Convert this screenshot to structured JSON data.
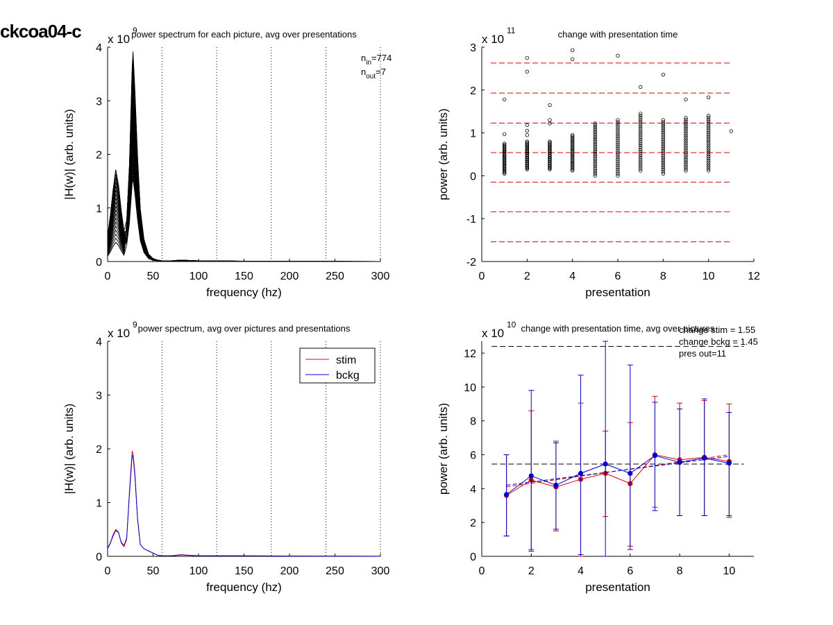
{
  "figure": {
    "suptitle": "ckcoa04-c"
  },
  "chart_data": [
    {
      "id": "tl",
      "type": "line",
      "title": "power spectrum for each picture, avg over presentations",
      "xlabel": "frequency (hz)",
      "ylabel": "|H(w)| (arb. units)",
      "xlim": [
        0,
        300
      ],
      "ylim": [
        0,
        4
      ],
      "xticks": [
        0,
        50,
        100,
        150,
        200,
        250,
        300
      ],
      "yticks": [
        0,
        1,
        2,
        3,
        4
      ],
      "exponent": "x 10",
      "exponent_power": "9",
      "vlines": [
        60,
        120,
        180,
        240,
        300
      ],
      "annotation": {
        "n_in": "774",
        "n_out": "7",
        "n_in_label": "n",
        "n_in_sub": "in",
        "n_out_label": "n",
        "n_out_sub": "out"
      },
      "series_count": 40,
      "base_spectrum": {
        "x": [
          0,
          3,
          6,
          9,
          12,
          15,
          18,
          21,
          24,
          27,
          28,
          30,
          33,
          36,
          40,
          45,
          50,
          55,
          60,
          70,
          80,
          100,
          120,
          150,
          200,
          250,
          300
        ],
        "y": [
          0.25,
          0.45,
          0.7,
          0.9,
          0.75,
          0.5,
          0.3,
          0.55,
          1.3,
          2.6,
          2.8,
          2.3,
          1.4,
          0.7,
          0.3,
          0.1,
          0.04,
          0.02,
          0.01,
          0.01,
          0.02,
          0.01,
          0.01,
          0.005,
          0.003,
          0.002,
          0.001
        ]
      }
    },
    {
      "id": "tr",
      "type": "scatter",
      "title": "change with presentation time",
      "xlabel": "presentation",
      "ylabel": "power (arb. units)",
      "xlim": [
        0,
        12
      ],
      "ylim": [
        -2,
        3
      ],
      "xticks": [
        0,
        2,
        4,
        6,
        8,
        10,
        12
      ],
      "yticks": [
        -2,
        -1,
        0,
        1,
        2,
        3
      ],
      "exponent": "x 10",
      "exponent_power": "11",
      "hlines": [
        2.63,
        1.93,
        1.23,
        0.54,
        -0.15,
        -0.84,
        -1.54
      ],
      "columns": [
        {
          "x": 1,
          "min": 0.05,
          "max": 0.75,
          "outliers": [
            0.97,
            1.78
          ]
        },
        {
          "x": 2,
          "min": 0.15,
          "max": 0.8,
          "outliers": [
            0.95,
            1.05,
            1.18,
            2.43,
            2.75
          ]
        },
        {
          "x": 3,
          "min": 0.15,
          "max": 0.8,
          "outliers": [
            1.22,
            1.3,
            1.65
          ]
        },
        {
          "x": 4,
          "min": 0.12,
          "max": 0.95,
          "outliers": [
            2.72,
            2.93
          ]
        },
        {
          "x": 5,
          "min": 0.0,
          "max": 1.22,
          "outliers": []
        },
        {
          "x": 6,
          "min": 0.0,
          "max": 1.3,
          "outliers": [
            2.8
          ]
        },
        {
          "x": 7,
          "min": 0.12,
          "max": 1.45,
          "outliers": [
            2.07
          ]
        },
        {
          "x": 8,
          "min": 0.05,
          "max": 1.3,
          "outliers": [
            2.36
          ]
        },
        {
          "x": 9,
          "min": 0.12,
          "max": 1.35,
          "outliers": [
            1.78
          ]
        },
        {
          "x": 10,
          "min": 0.12,
          "max": 1.4,
          "outliers": [
            1.83
          ]
        },
        {
          "x": 11,
          "min": 1.04,
          "max": 1.04,
          "outliers": []
        }
      ]
    },
    {
      "id": "bl",
      "type": "line",
      "title": "power spectrum, avg over pictures and presentations",
      "xlabel": "frequency (hz)",
      "ylabel": "|H(w)| (arb. units)",
      "xlim": [
        0,
        300
      ],
      "ylim": [
        0,
        4
      ],
      "xticks": [
        0,
        50,
        100,
        150,
        200,
        250,
        300
      ],
      "yticks": [
        0,
        1,
        2,
        3,
        4
      ],
      "exponent": "x 10",
      "exponent_power": "9",
      "vlines": [
        60,
        120,
        180,
        240,
        300
      ],
      "legend": "top-right",
      "series": [
        {
          "name": "stim",
          "color": "#ff0000",
          "x": [
            0,
            3,
            6,
            9,
            12,
            15,
            18,
            21,
            24,
            27,
            28,
            30,
            33,
            36,
            40,
            45,
            50,
            55,
            60,
            70,
            80,
            100,
            150,
            200,
            250,
            300
          ],
          "y": [
            0.15,
            0.25,
            0.4,
            0.5,
            0.45,
            0.25,
            0.18,
            0.32,
            1.2,
            1.95,
            1.92,
            1.55,
            0.7,
            0.22,
            0.14,
            0.1,
            0.06,
            0.02,
            0.01,
            0.01,
            0.03,
            0.01,
            0.01,
            0.005,
            0.003,
            0.002
          ]
        },
        {
          "name": "bckg",
          "color": "#0000cc",
          "x": [
            0,
            3,
            6,
            9,
            12,
            15,
            18,
            21,
            24,
            27,
            28,
            30,
            33,
            36,
            40,
            45,
            50,
            55,
            60,
            70,
            80,
            100,
            150,
            200,
            250,
            300
          ],
          "y": [
            0.14,
            0.24,
            0.38,
            0.48,
            0.44,
            0.26,
            0.2,
            0.34,
            1.15,
            1.88,
            1.86,
            1.5,
            0.68,
            0.22,
            0.14,
            0.1,
            0.06,
            0.02,
            0.01,
            0.01,
            0.025,
            0.01,
            0.01,
            0.005,
            0.003,
            0.002
          ]
        }
      ]
    },
    {
      "id": "br",
      "type": "line",
      "title": "change with presentation time, avg over pictures",
      "xlabel": "presentation",
      "ylabel": "power (arb. units)",
      "xlim": [
        0,
        11
      ],
      "ylim": [
        0,
        12.7
      ],
      "xticks": [
        0,
        2,
        4,
        6,
        8,
        10
      ],
      "yticks": [
        0,
        2,
        4,
        6,
        8,
        10,
        12
      ],
      "exponent": "x 10",
      "exponent_power": "10",
      "annotations": [
        "change stim = 1.55",
        "change bckg = 1.45",
        "pres out=11"
      ],
      "hlines": [
        12.4,
        5.45
      ],
      "series": [
        {
          "name": "stim",
          "color": "#cc0000",
          "x": [
            1,
            2,
            3,
            4,
            5,
            6,
            7,
            8,
            9,
            10
          ],
          "y": [
            3.6,
            4.5,
            4.1,
            4.55,
            4.9,
            4.3,
            6.0,
            5.7,
            5.85,
            5.6
          ],
          "err_low": [
            1.2,
            0.4,
            1.5,
            0.0,
            2.35,
            0.6,
            2.9,
            2.4,
            2.4,
            2.3
          ],
          "err_high": [
            6.0,
            8.6,
            6.8,
            9.05,
            7.4,
            7.9,
            9.45,
            9.05,
            9.2,
            9.0
          ],
          "trend": [
            4.1,
            6.0
          ]
        },
        {
          "name": "bckg",
          "color": "#0000cc",
          "x": [
            1,
            2,
            3,
            4,
            5,
            6,
            7,
            8,
            9,
            10
          ],
          "y": [
            3.65,
            4.75,
            4.2,
            4.9,
            5.45,
            4.9,
            5.95,
            5.55,
            5.8,
            5.5
          ],
          "err_low": [
            1.2,
            0.3,
            1.6,
            0.1,
            0.0,
            0.4,
            2.7,
            2.4,
            2.4,
            2.4
          ],
          "err_high": [
            6.0,
            9.8,
            6.7,
            10.7,
            12.7,
            11.3,
            9.1,
            8.7,
            9.3,
            8.5
          ],
          "trend": [
            4.2,
            5.9
          ]
        }
      ]
    }
  ]
}
